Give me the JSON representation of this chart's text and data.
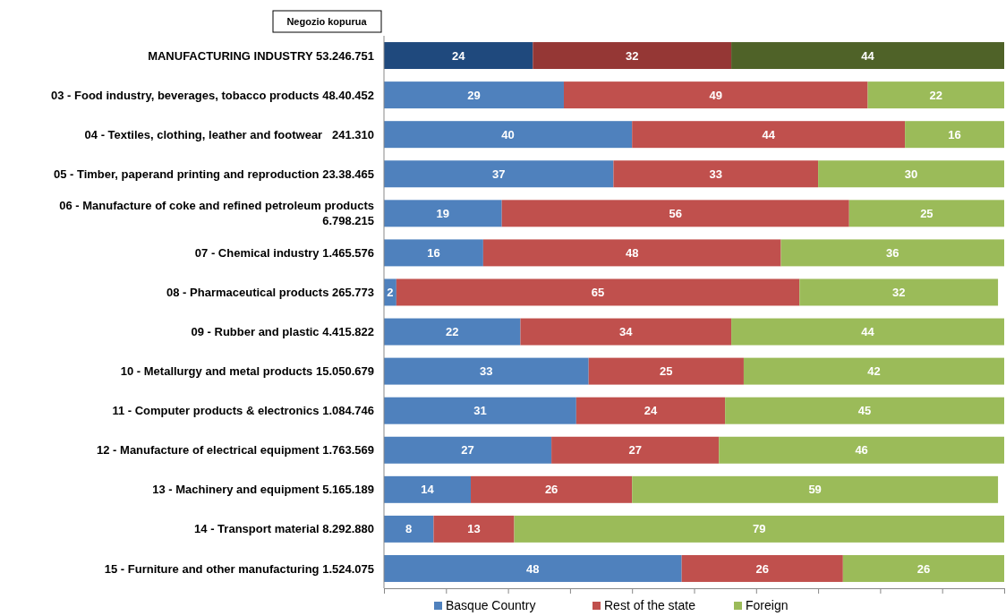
{
  "chart_data": {
    "type": "bar",
    "orientation": "horizontal",
    "stacked": true,
    "ylabel": "Negozio kopurua",
    "categories": [
      "MANUFACTURING INDUSTRY 53.246.751",
      "03 - Food industry, beverages, tobacco products 48.40.452",
      "04 - Textiles, clothing, leather and footwear   241.310",
      "05 - Timber, paperand printing and reproduction 23.38.465",
      "06 - Manufacture of coke and refined petroleum products 6.798.215",
      "07 - Chemical industry 1.465.576",
      "08 - Pharmaceutical products 265.773",
      "09 - Rubber and plastic 4.415.822",
      "10 - Metallurgy and metal products 15.050.679",
      "11 - Computer products & electronics 1.084.746",
      "12 - Manufacture of electrical equipment 1.763.569",
      "13 - Machinery and equipment 5.165.189",
      "14 - Transport material 8.292.880",
      "15 - Furniture and other manufacturing 1.524.075"
    ],
    "series": [
      {
        "name": "Basque Country",
        "color": "#4f81bd",
        "colors": [
          "#1f497d",
          "#4f81bd",
          "#4f81bd",
          "#4f81bd",
          "#4f81bd",
          "#4f81bd",
          "#4f81bd",
          "#4f81bd",
          "#4f81bd",
          "#4f81bd",
          "#4f81bd",
          "#4f81bd",
          "#4f81bd",
          "#4f81bd"
        ],
        "values": [
          24,
          29,
          40,
          37,
          19,
          16,
          2,
          22,
          33,
          31,
          27,
          14,
          8,
          48
        ]
      },
      {
        "name": "Rest of the state",
        "color": "#c0504d",
        "colors": [
          "#953735",
          "#c0504d",
          "#c0504d",
          "#c0504d",
          "#c0504d",
          "#c0504d",
          "#c0504d",
          "#c0504d",
          "#c0504d",
          "#c0504d",
          "#c0504d",
          "#c0504d",
          "#c0504d",
          "#c0504d"
        ],
        "values": [
          32,
          49,
          44,
          33,
          56,
          48,
          65,
          34,
          25,
          24,
          27,
          26,
          13,
          26
        ]
      },
      {
        "name": "Foreign",
        "color": "#9bbb59",
        "colors": [
          "#4f6228",
          "#9bbb59",
          "#9bbb59",
          "#9bbb59",
          "#9bbb59",
          "#9bbb59",
          "#9bbb59",
          "#9bbb59",
          "#9bbb59",
          "#9bbb59",
          "#9bbb59",
          "#9bbb59",
          "#9bbb59",
          "#9bbb59"
        ],
        "values": [
          44,
          22,
          16,
          30,
          25,
          36,
          32,
          44,
          42,
          45,
          46,
          59,
          79,
          26
        ]
      }
    ],
    "xlim": [
      0,
      100
    ],
    "xticks": [
      {
        "value": 0,
        "label": null
      },
      {
        "value": 10,
        "label": null
      },
      {
        "value": 20,
        "label": null
      },
      {
        "value": 30,
        "label": null
      },
      {
        "value": 40,
        "label": null
      },
      {
        "value": 50,
        "label": null
      },
      {
        "value": 60,
        "label": null
      },
      {
        "value": 70,
        "label": null
      },
      {
        "value": 80,
        "label": null
      },
      {
        "value": 90,
        "label": null
      },
      {
        "value": 100,
        "label": null
      }
    ],
    "tick_labels": "y",
    "data_labels": true,
    "legend": "bottom"
  }
}
